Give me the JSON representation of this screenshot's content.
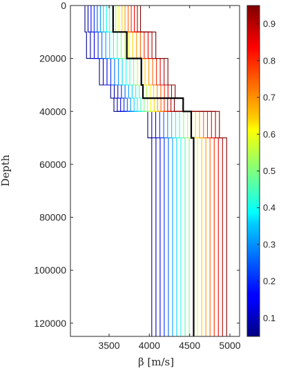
{
  "chart_data": {
    "type": "line",
    "title": "",
    "xlabel": "β [m/s]",
    "ylabel": "Depth",
    "xlim": [
      3020,
      5120
    ],
    "ylim": [
      125000,
      0
    ],
    "y_reversed": true,
    "xticks": [
      3500,
      4000,
      4500,
      5000
    ],
    "yticks": [
      0,
      20000,
      40000,
      60000,
      80000,
      100000,
      120000
    ],
    "grid": false,
    "colormap": "jet",
    "colorbar": {
      "range": [
        0.05,
        0.95
      ],
      "ticks": [
        0.1,
        0.2,
        0.3,
        0.4,
        0.5,
        0.6,
        0.7,
        0.8,
        0.9
      ],
      "tick_labels": [
        "0.1",
        "0.2",
        "0.3",
        "0.4",
        "0.5",
        "0.6",
        "0.7",
        "0.8",
        "0.9"
      ]
    },
    "layer_boundaries": [
      0,
      10000,
      20000,
      30000,
      35000,
      40000,
      50000,
      125000
    ],
    "quantiles": [
      0.05,
      0.1,
      0.15,
      0.2,
      0.25,
      0.3,
      0.35,
      0.4,
      0.45,
      0.5,
      0.55,
      0.6,
      0.65,
      0.7,
      0.75,
      0.8,
      0.85,
      0.9,
      0.95
    ],
    "layer_min": [
      3200,
      3220,
      3380,
      3520,
      3560,
      3980,
      4030,
      4120
    ],
    "layer_max": [
      3890,
      4080,
      4230,
      4320,
      4310,
      4870,
      4960,
      4980
    ],
    "reference_profile": {
      "name": "",
      "color": "#000000",
      "values": [
        3550,
        3720,
        3900,
        3920,
        4420,
        4520,
        4550
      ]
    }
  }
}
